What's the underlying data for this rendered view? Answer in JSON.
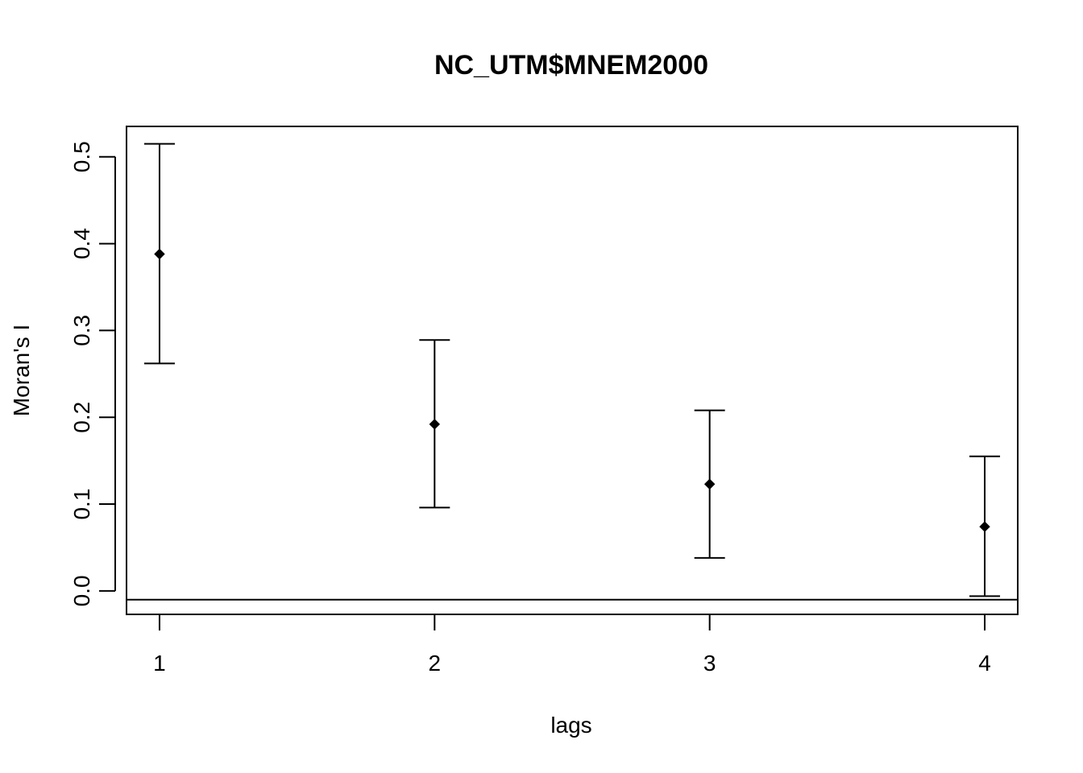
{
  "chart_data": {
    "type": "scatter",
    "title": "NC_UTM$MNEM2000",
    "xlabel": "lags",
    "ylabel": "Moran's  I",
    "x_ticks": [
      "1",
      "2",
      "3",
      "4"
    ],
    "y_ticks": [
      "0.0",
      "0.1",
      "0.2",
      "0.3",
      "0.4",
      "0.5"
    ],
    "xlim": [
      0.88,
      4.12
    ],
    "ylim": [
      -0.027,
      0.535
    ],
    "reference_line": -0.0101,
    "series": [
      {
        "x": [
          1,
          2,
          3,
          4
        ],
        "estimate": [
          0.388,
          0.192,
          0.123,
          0.074
        ],
        "lower": [
          0.262,
          0.096,
          0.038,
          -0.006
        ],
        "upper": [
          0.515,
          0.289,
          0.208,
          0.155
        ]
      }
    ]
  }
}
